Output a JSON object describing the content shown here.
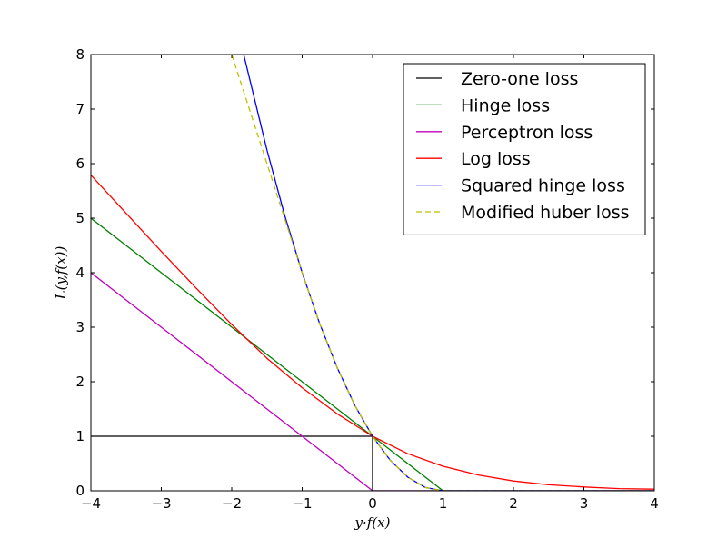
{
  "chart_data": {
    "type": "line",
    "title": "",
    "xlabel": "y·f(x)",
    "ylabel": "L(y,f(x))",
    "xlim": [
      -4,
      4
    ],
    "ylim": [
      0,
      8
    ],
    "xticks": [
      "−4",
      "−3",
      "−2",
      "−1",
      "0",
      "1",
      "2",
      "3",
      "4"
    ],
    "yticks": [
      "0",
      "1",
      "2",
      "3",
      "4",
      "5",
      "6",
      "7",
      "8"
    ],
    "grid": false,
    "legend_position": "top-right",
    "series": [
      {
        "name": "Zero-one loss",
        "color": "#000000",
        "dash": "solid",
        "x": [
          -4,
          0,
          0,
          4
        ],
        "y": [
          1,
          1,
          0,
          0
        ]
      },
      {
        "name": "Hinge loss",
        "color": "#008000",
        "dash": "solid",
        "x": [
          -4,
          -3,
          -2,
          -1,
          0,
          1,
          2,
          3,
          4
        ],
        "y": [
          5,
          4,
          3,
          2,
          1,
          0,
          0,
          0,
          0
        ]
      },
      {
        "name": "Perceptron loss",
        "color": "#bf00bf",
        "dash": "solid",
        "x": [
          -4,
          -3,
          -2,
          -1,
          0,
          1,
          2,
          3,
          4
        ],
        "y": [
          4,
          3,
          2,
          1,
          0,
          0,
          0,
          0,
          0
        ]
      },
      {
        "name": "Log loss",
        "color": "#ff0000",
        "dash": "solid",
        "x": [
          -4,
          -3.5,
          -3,
          -2.5,
          -2,
          -1.5,
          -1,
          -0.5,
          0,
          0.5,
          1,
          1.5,
          2,
          2.5,
          3,
          3.5,
          4
        ],
        "y": [
          5.79,
          5.09,
          4.39,
          3.71,
          3.05,
          2.43,
          1.89,
          1.41,
          1.0,
          0.68,
          0.45,
          0.29,
          0.18,
          0.11,
          0.07,
          0.04,
          0.03
        ]
      },
      {
        "name": "Squared hinge loss",
        "color": "#0000ff",
        "dash": "solid",
        "x": [
          -1.83,
          -1.5,
          -1.25,
          -1,
          -0.75,
          -0.5,
          -0.25,
          0,
          0.25,
          0.5,
          0.75,
          1,
          2,
          3,
          4
        ],
        "y": [
          8.0,
          6.25,
          5.06,
          4.0,
          3.06,
          2.25,
          1.56,
          1.0,
          0.56,
          0.25,
          0.06,
          0,
          0,
          0,
          0
        ]
      },
      {
        "name": "Modified huber loss",
        "color": "#bfbf00",
        "dash": "dashed",
        "x": [
          -2,
          -1.5,
          -1.25,
          -1,
          -0.75,
          -0.5,
          -0.25,
          0,
          0.25,
          0.5,
          0.75,
          1,
          2,
          3,
          4
        ],
        "y": [
          8.0,
          6.0,
          5.0,
          4.0,
          3.06,
          2.25,
          1.56,
          1.0,
          0.56,
          0.25,
          0.06,
          0,
          0,
          0,
          0
        ]
      }
    ]
  }
}
